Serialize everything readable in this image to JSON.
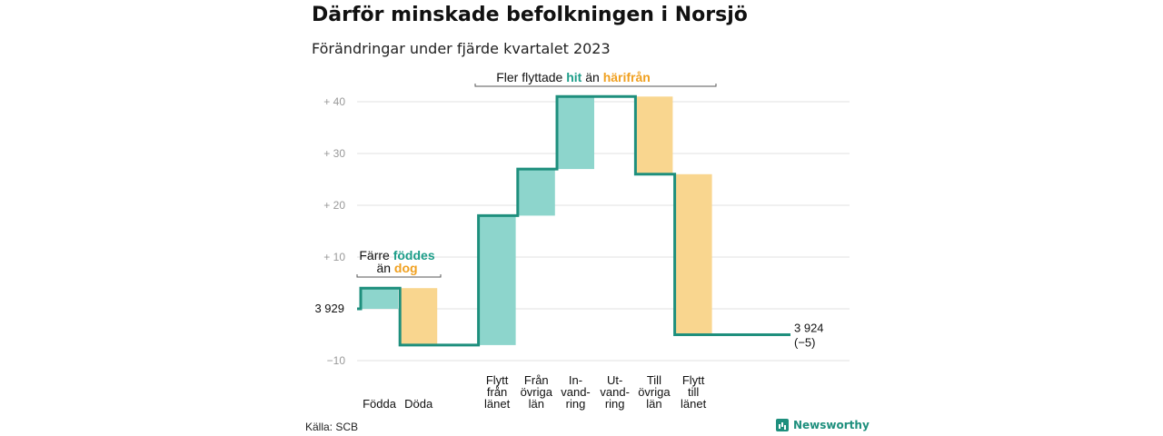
{
  "title": "Därför minskade befolkningen i Norsjö",
  "subtitle": "Förändringar under fjärde kvartalet 2023",
  "source": "Källa: SCB",
  "brand": {
    "name": "Newsworthy",
    "icon": "newsworthy-logo-icon"
  },
  "colors": {
    "increase": "#8dd5cc",
    "decrease": "#f9d68f",
    "line": "#1e8f7d",
    "accent_up": "#1e9e8a",
    "accent_down": "#f0a020",
    "grid": "#e0e0e0",
    "tick": "#999999"
  },
  "chart_data": {
    "type": "waterfall",
    "baseline": 3929,
    "baseline_label": "3 929",
    "end_value": 3924,
    "end_label": "3 924",
    "end_change_label": "(−5)",
    "y_ticks": [
      {
        "value": 40,
        "label": "+ 40"
      },
      {
        "value": 30,
        "label": "+ 30"
      },
      {
        "value": 20,
        "label": "+ 20"
      },
      {
        "value": 10,
        "label": "+ 10"
      },
      {
        "value": -10,
        "label": "−10"
      }
    ],
    "ylim": [
      -10,
      40
    ],
    "steps": [
      {
        "category": [
          "Födda"
        ],
        "delta": 4,
        "direction": "increase"
      },
      {
        "category": [
          "Döda"
        ],
        "delta": -11,
        "direction": "decrease"
      },
      {
        "category": [],
        "delta": 0,
        "direction": "none"
      },
      {
        "category": [
          "Flytt",
          "från",
          "länet"
        ],
        "delta": 25,
        "direction": "increase"
      },
      {
        "category": [
          "Från",
          "övriga",
          "län"
        ],
        "delta": 9,
        "direction": "increase"
      },
      {
        "category": [
          "In-",
          "vand-",
          "ring"
        ],
        "delta": 14,
        "direction": "increase"
      },
      {
        "category": [
          "Ut-",
          "vand-",
          "ring"
        ],
        "delta": 0,
        "direction": "none"
      },
      {
        "category": [
          "Till",
          "övriga",
          "län"
        ],
        "delta": -15,
        "direction": "decrease"
      },
      {
        "category": [
          "Flytt",
          "till",
          "länet"
        ],
        "delta": -31,
        "direction": "decrease"
      }
    ],
    "annotations": [
      {
        "id": "births",
        "lines": [
          [
            {
              "text": "Färre ",
              "style": "plain"
            },
            {
              "text": "föddes",
              "style": "up"
            }
          ],
          [
            {
              "text": "än ",
              "style": "plain"
            },
            {
              "text": "dog",
              "style": "down"
            }
          ]
        ]
      },
      {
        "id": "migration",
        "lines": [
          [
            {
              "text": "Fler flyttade ",
              "style": "plain"
            },
            {
              "text": "hit",
              "style": "up"
            },
            {
              "text": " än ",
              "style": "plain"
            },
            {
              "text": "härifrån",
              "style": "down"
            }
          ]
        ]
      }
    ]
  }
}
